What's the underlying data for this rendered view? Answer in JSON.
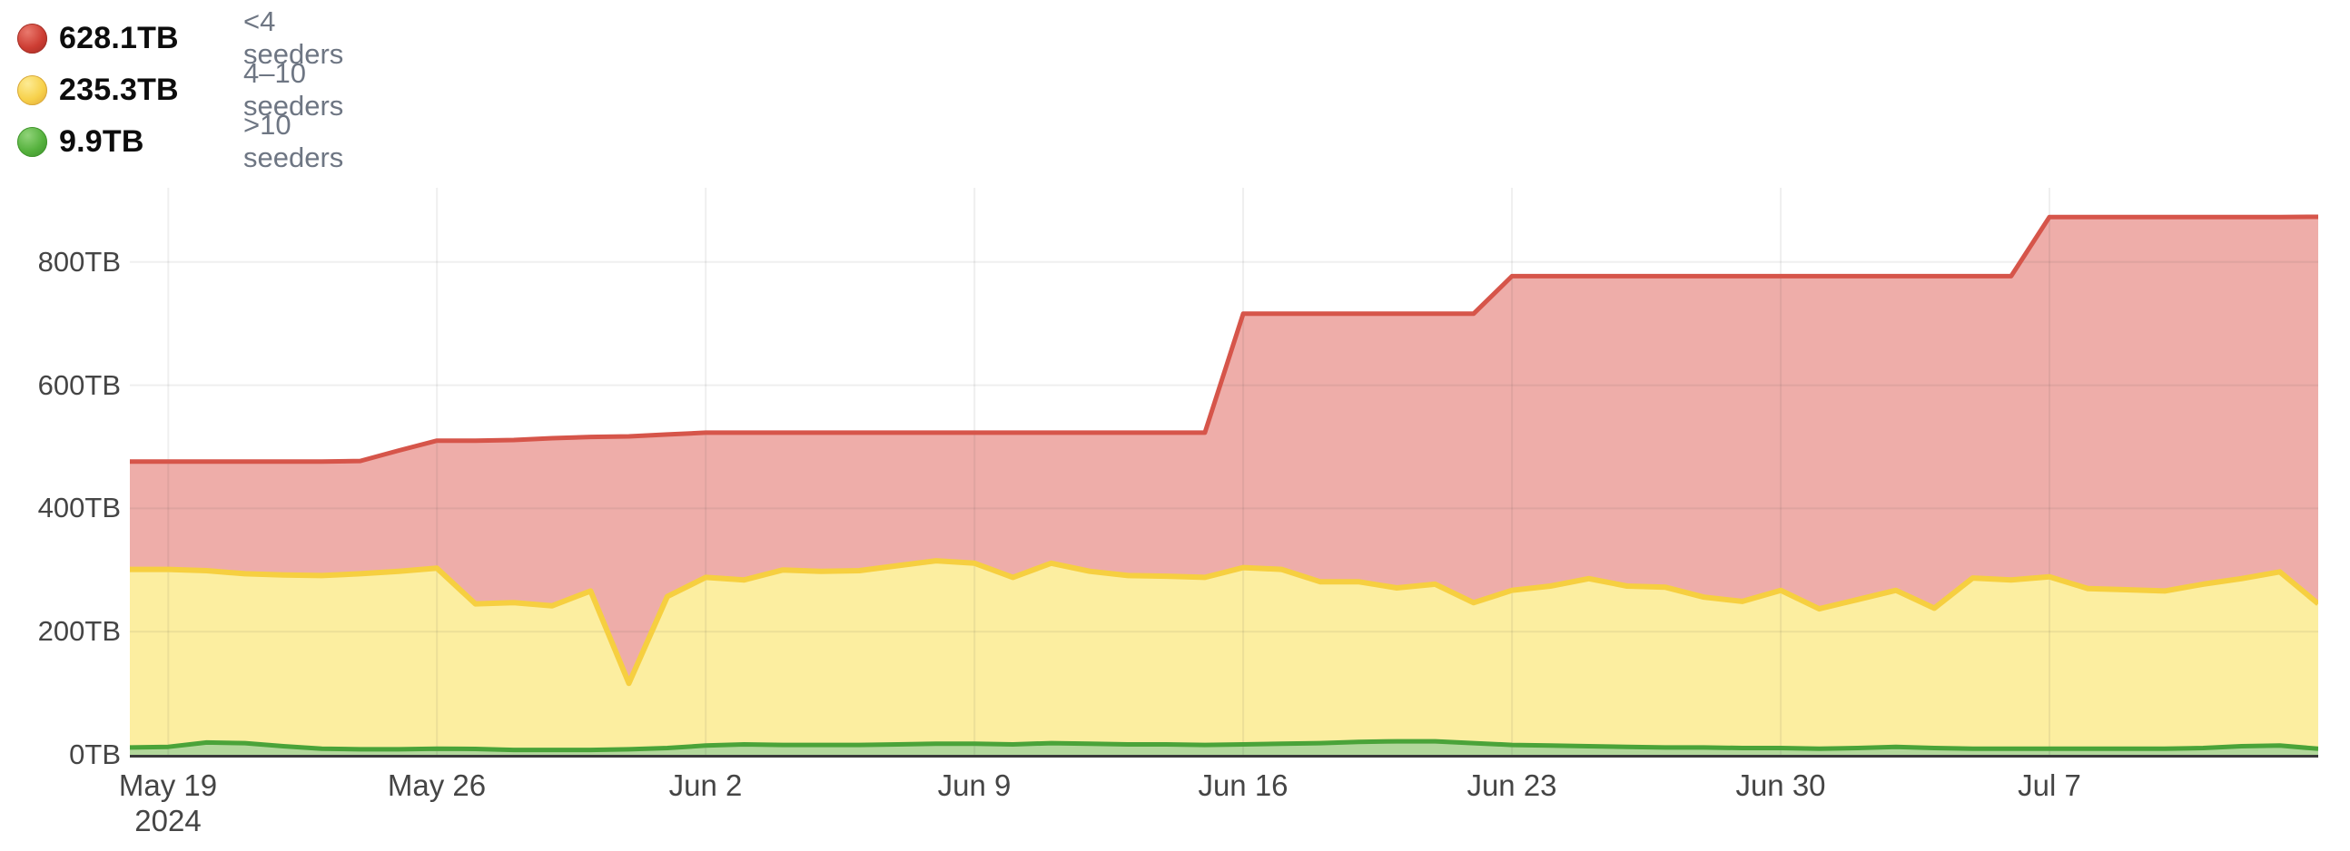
{
  "legend": {
    "items": [
      {
        "value": "628.1TB",
        "label": "<4 seeders",
        "color_name": "red",
        "dot_color": "#cd3d33"
      },
      {
        "value": "235.3TB",
        "label": "4–10 seeders",
        "color_name": "yellow",
        "dot_color": "#f7d14b"
      },
      {
        "value": "9.9TB",
        "label": ">10 seeders",
        "color_name": "green",
        "dot_color": "#55b13d"
      }
    ]
  },
  "chart_data": {
    "type": "area",
    "stacked": true,
    "title": "",
    "xlabel": "",
    "ylabel": "",
    "unit": "TB",
    "grid": true,
    "legend_position": "top-left",
    "ylim": [
      0,
      920
    ],
    "x": [
      "May 18",
      "May 19",
      "May 20",
      "May 21",
      "May 22",
      "May 23",
      "May 24",
      "May 25",
      "May 26",
      "May 27",
      "May 28",
      "May 29",
      "May 30",
      "May 31",
      "Jun 1",
      "Jun 2",
      "Jun 3",
      "Jun 4",
      "Jun 5",
      "Jun 6",
      "Jun 7",
      "Jun 8",
      "Jun 9",
      "Jun 10",
      "Jun 11",
      "Jun 12",
      "Jun 13",
      "Jun 14",
      "Jun 15",
      "Jun 16",
      "Jun 17",
      "Jun 18",
      "Jun 19",
      "Jun 20",
      "Jun 21",
      "Jun 22",
      "Jun 23",
      "Jun 24",
      "Jun 25",
      "Jun 26",
      "Jun 27",
      "Jun 28",
      "Jun 29",
      "Jun 30",
      "Jul 1",
      "Jul 2",
      "Jul 3",
      "Jul 4",
      "Jul 5",
      "Jul 6",
      "Jul 7",
      "Jul 8",
      "Jul 9",
      "Jul 10",
      "Jul 11",
      "Jul 12",
      "Jul 13",
      "Jul 14"
    ],
    "series": [
      {
        "name": ">10 seeders",
        "current": 9.9,
        "line_color": "#4aa339",
        "fill_color": "#b2d79b",
        "values": [
          12,
          13,
          20,
          19,
          14,
          10,
          9,
          9,
          10,
          9.5,
          8,
          8,
          8,
          9,
          11,
          15,
          17,
          16,
          16,
          16,
          17,
          18,
          18,
          17,
          19,
          18,
          17,
          17,
          16,
          17,
          18,
          19,
          21,
          22,
          22,
          19,
          16,
          15,
          14,
          13,
          12,
          12,
          11,
          11,
          10,
          11,
          13,
          11,
          10,
          10,
          10,
          10,
          10,
          10,
          11,
          14,
          15,
          9.9
        ]
      },
      {
        "name": "4–10 seeders",
        "current": 235.3,
        "line_color": "#f6cf40",
        "fill_color": "#fceea0",
        "values": [
          289,
          288,
          279,
          275,
          278,
          281,
          285,
          289,
          293,
          235.5,
          239,
          234,
          258,
          107,
          246,
          273,
          267,
          284,
          282,
          283,
          290,
          297,
          293,
          271,
          292,
          280,
          274,
          273,
          272,
          287,
          283,
          262,
          260,
          249,
          255,
          228,
          251,
          259,
          272,
          261,
          260,
          244,
          238,
          256,
          227,
          241,
          254,
          227,
          277,
          274,
          279,
          260,
          258,
          256,
          266,
          272,
          282,
          235.3
        ]
      },
      {
        "name": "<4 seeders",
        "current": 628.1,
        "line_color": "#d6554a",
        "fill_color": "#eeada9",
        "values": [
          175,
          175,
          177,
          182,
          184,
          185,
          183,
          196,
          207,
          265,
          264,
          272,
          250,
          401,
          263,
          235,
          239,
          223,
          225,
          224,
          216,
          208,
          212,
          235,
          212,
          225,
          232,
          233,
          235,
          412,
          415,
          435,
          435,
          445,
          439,
          469,
          510,
          503,
          491,
          503,
          505,
          521,
          528,
          510,
          540,
          525,
          510,
          539,
          490,
          493,
          584,
          603,
          605,
          607,
          596,
          587,
          576,
          628.1
        ]
      }
    ],
    "y_ticks": [
      "0TB",
      "200TB",
      "400TB",
      "600TB",
      "800TB"
    ],
    "y_tick_values": [
      0,
      200,
      400,
      600,
      800
    ],
    "x_ticks": [
      {
        "index": 1,
        "label": "May 19",
        "sub": "2024"
      },
      {
        "index": 8,
        "label": "May 26"
      },
      {
        "index": 15,
        "label": "Jun 2"
      },
      {
        "index": 22,
        "label": "Jun 9"
      },
      {
        "index": 29,
        "label": "Jun 16"
      },
      {
        "index": 36,
        "label": "Jun 23"
      },
      {
        "index": 43,
        "label": "Jun 30"
      },
      {
        "index": 50,
        "label": "Jul 7"
      }
    ]
  },
  "colors": {
    "background": "#ffffff",
    "gridline": "#ededed",
    "axis_line": "#3a3a3a",
    "axis_text": "#454545",
    "legend_value_text": "#0d0d0d",
    "legend_label_text": "#6e7683"
  }
}
